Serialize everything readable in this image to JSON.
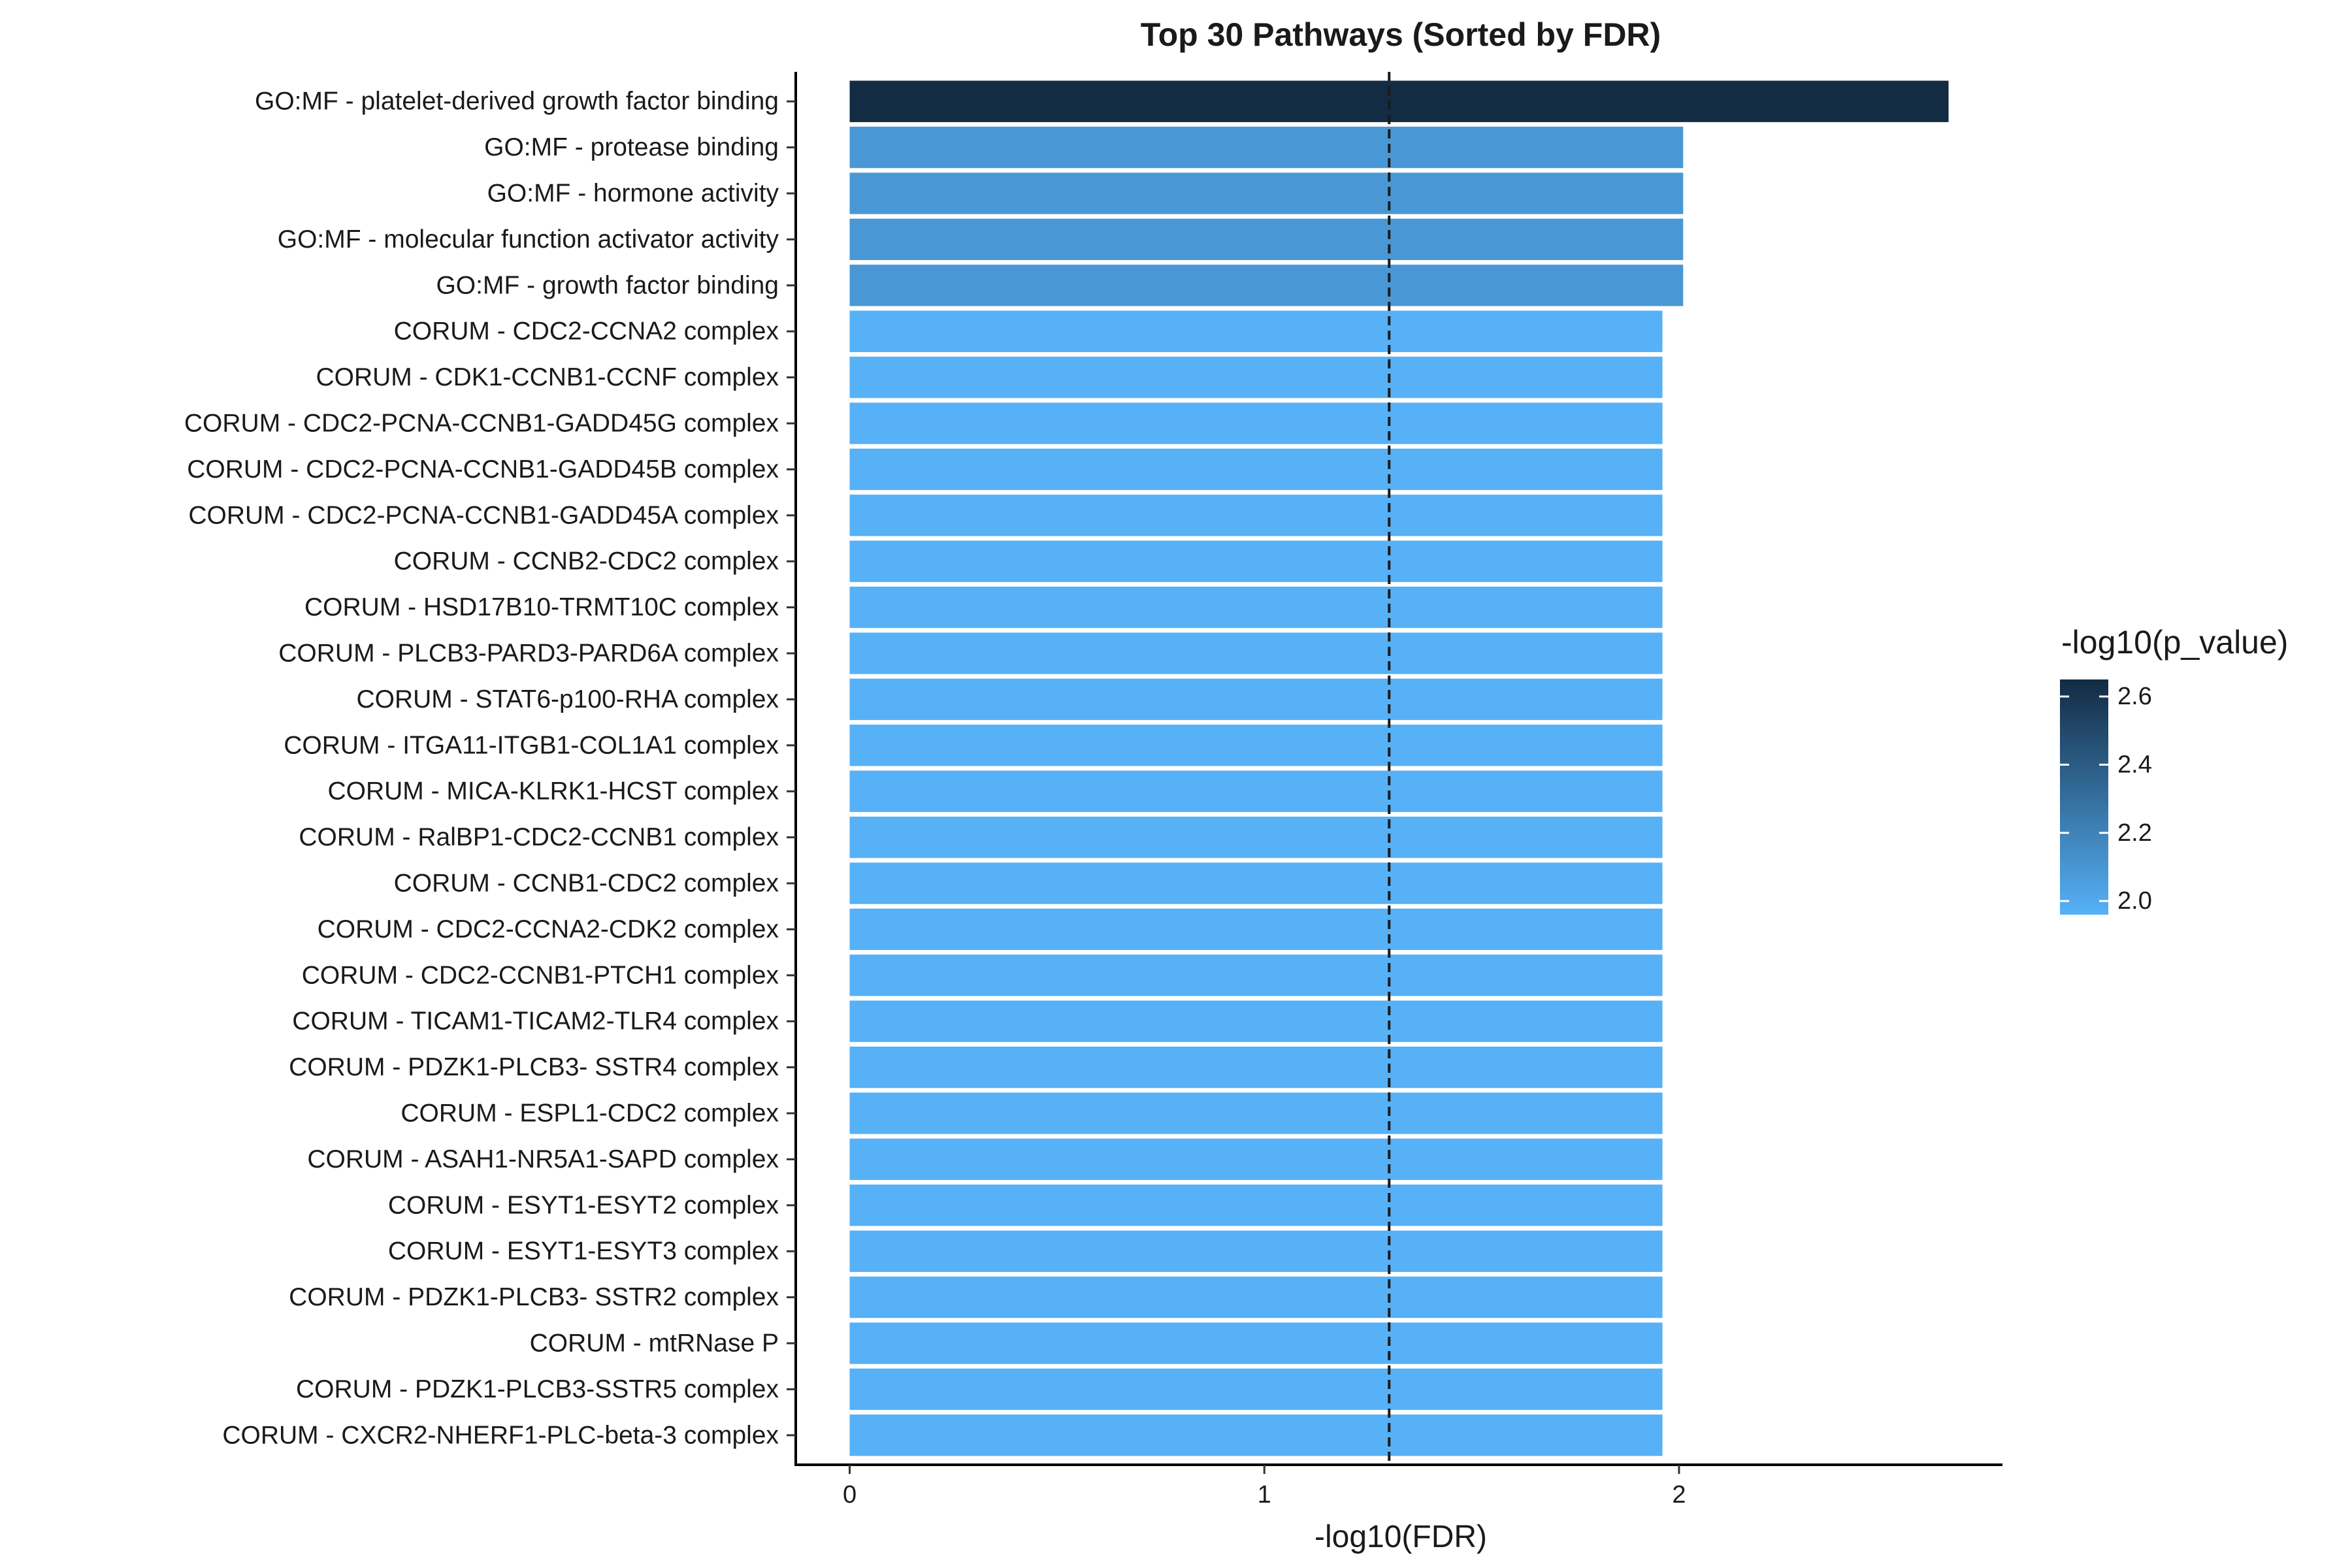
{
  "chart_data": {
    "type": "bar",
    "orientation": "horizontal",
    "title": "Top 30 Pathways (Sorted by FDR)",
    "xlabel": "-log10(FDR)",
    "ylabel": "",
    "xlim": [
      -0.13,
      2.78
    ],
    "x_ticks": [
      0,
      1,
      2
    ],
    "reference_line": {
      "x": 1.301,
      "style": "dashed"
    },
    "categories": [
      "GO:MF - platelet-derived growth factor binding",
      "GO:MF - protease binding",
      "GO:MF - hormone activity",
      "GO:MF - molecular function activator activity",
      "GO:MF - growth factor binding",
      "CORUM - CDC2-CCNA2 complex",
      "CORUM - CDK1-CCNB1-CCNF complex",
      "CORUM - CDC2-PCNA-CCNB1-GADD45G complex",
      "CORUM - CDC2-PCNA-CCNB1-GADD45B complex",
      "CORUM - CDC2-PCNA-CCNB1-GADD45A complex",
      "CORUM - CCNB2-CDC2 complex",
      "CORUM - HSD17B10-TRMT10C complex",
      "CORUM - PLCB3-PARD3-PARD6A complex",
      "CORUM - STAT6-p100-RHA complex",
      "CORUM - ITGA11-ITGB1-COL1A1 complex",
      "CORUM - MICA-KLRK1-HCST complex",
      "CORUM - RalBP1-CDC2-CCNB1 complex",
      "CORUM - CCNB1-CDC2 complex",
      "CORUM - CDC2-CCNA2-CDK2 complex",
      "CORUM - CDC2-CCNB1-PTCH1 complex",
      "CORUM - TICAM1-TICAM2-TLR4 complex",
      "CORUM - PDZK1-PLCB3- SSTR4 complex",
      "CORUM - ESPL1-CDC2 complex",
      "CORUM - ASAH1-NR5A1-SAPD complex",
      "CORUM - ESYT1-ESYT2 complex",
      "CORUM - ESYT1-ESYT3 complex",
      "CORUM - PDZK1-PLCB3- SSTR2 complex",
      "CORUM - mtRNase P",
      "CORUM - PDZK1-PLCB3-SSTR5 complex",
      "CORUM - CXCR2-NHERF1-PLC-beta-3 complex"
    ],
    "values": [
      2.65,
      2.01,
      2.01,
      2.01,
      2.01,
      1.96,
      1.96,
      1.96,
      1.96,
      1.96,
      1.96,
      1.96,
      1.96,
      1.96,
      1.96,
      1.96,
      1.96,
      1.96,
      1.96,
      1.96,
      1.96,
      1.96,
      1.96,
      1.96,
      1.96,
      1.96,
      1.96,
      1.96,
      1.96,
      1.96
    ],
    "color_values": [
      2.65,
      2.09,
      2.09,
      2.09,
      2.09,
      1.96,
      1.96,
      1.96,
      1.96,
      1.96,
      1.96,
      1.96,
      1.96,
      1.96,
      1.96,
      1.96,
      1.96,
      1.96,
      1.96,
      1.96,
      1.96,
      1.96,
      1.96,
      1.96,
      1.96,
      1.96,
      1.96,
      1.96,
      1.96,
      1.96
    ],
    "legend": {
      "title": "-log10(p_value)",
      "placement": "right",
      "range": [
        1.96,
        2.65
      ],
      "ticks": [
        "2.0",
        "2.2",
        "2.4",
        "2.6"
      ],
      "tick_values": [
        2.0,
        2.2,
        2.4,
        2.6
      ],
      "color_low": "#56b1f7",
      "color_high": "#132b43"
    },
    "grid": false
  }
}
